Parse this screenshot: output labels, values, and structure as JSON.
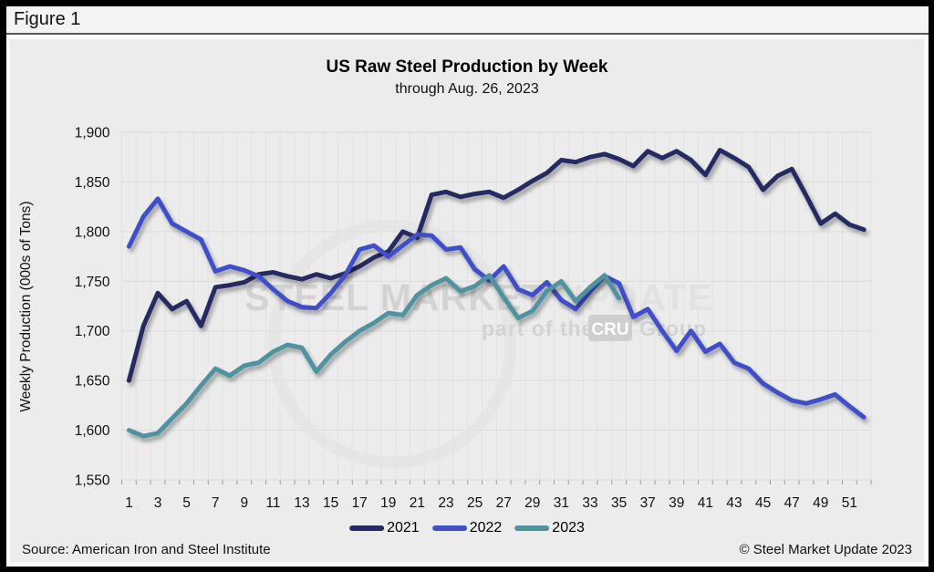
{
  "figure_label": "Figure 1",
  "footer": {
    "source": "Source: American Iron and Steel Institute",
    "copyright": "© Steel Market Update 2023"
  },
  "watermark": {
    "line1_bold": "STEEL MARKET ",
    "line1_light": "UPDATE",
    "line2_prefix": "part of the",
    "line2_badge": "CRU",
    "line2_suffix": "Group"
  },
  "colors": {
    "panel_bg": "#ececec",
    "grid_v": "#e2e2e2",
    "grid_h": "#dcdcdc",
    "tick": "#999999",
    "watermark_text": "#d3d3d3",
    "watermark_light": "#e2e2e2",
    "watermark_badge": "#cfcfcf"
  },
  "chart_data": {
    "type": "line",
    "title": "US Raw Steel Production by Week",
    "subtitle": "through Aug. 26, 2023",
    "xlabel": "",
    "ylabel": "Weekly Production (000s of Tons)",
    "ylim": [
      1550,
      1900
    ],
    "ytick_step": 50,
    "weeks": 52,
    "xtick_labels": [
      1,
      3,
      5,
      7,
      9,
      11,
      13,
      15,
      17,
      19,
      21,
      23,
      25,
      27,
      29,
      31,
      33,
      35,
      37,
      39,
      41,
      43,
      45,
      47,
      49,
      51
    ],
    "grid": true,
    "legend_position": "bottom",
    "series": [
      {
        "name": "2021",
        "color": "#252a62",
        "values": [
          1650,
          1705,
          1738,
          1722,
          1730,
          1705,
          1744,
          1746,
          1749,
          1757,
          1759,
          1755,
          1752,
          1757,
          1753,
          1758,
          1765,
          1774,
          1780,
          1800,
          1794,
          1837,
          1840,
          1835,
          1838,
          1840,
          1834,
          1842,
          1851,
          1859,
          1872,
          1870,
          1875,
          1878,
          1873,
          1866,
          1881,
          1874,
          1881,
          1872,
          1857,
          1882,
          1874,
          1865,
          1842,
          1856,
          1863,
          1836,
          1808,
          1818,
          1807,
          1802
        ]
      },
      {
        "name": "2022",
        "color": "#4150c8",
        "values": [
          1785,
          1815,
          1833,
          1808,
          1800,
          1792,
          1760,
          1765,
          1761,
          1755,
          1742,
          1730,
          1724,
          1723,
          1738,
          1756,
          1782,
          1786,
          1775,
          1786,
          1797,
          1796,
          1782,
          1784,
          1762,
          1751,
          1765,
          1742,
          1736,
          1749,
          1731,
          1722,
          1740,
          1755,
          1748,
          1714,
          1722,
          1700,
          1680,
          1700,
          1679,
          1687,
          1668,
          1662,
          1647,
          1638,
          1630,
          1627,
          1631,
          1636,
          1624,
          1613
        ]
      },
      {
        "name": "2023",
        "color": "#4f93a0",
        "values": [
          1600,
          1594,
          1597,
          1612,
          1627,
          1645,
          1662,
          1655,
          1665,
          1668,
          1679,
          1686,
          1683,
          1659,
          1676,
          1689,
          1700,
          1708,
          1718,
          1716,
          1736,
          1746,
          1753,
          1740,
          1745,
          1756,
          1734,
          1713,
          1720,
          1740,
          1750,
          1730,
          1744,
          1756,
          1733
        ]
      }
    ]
  }
}
